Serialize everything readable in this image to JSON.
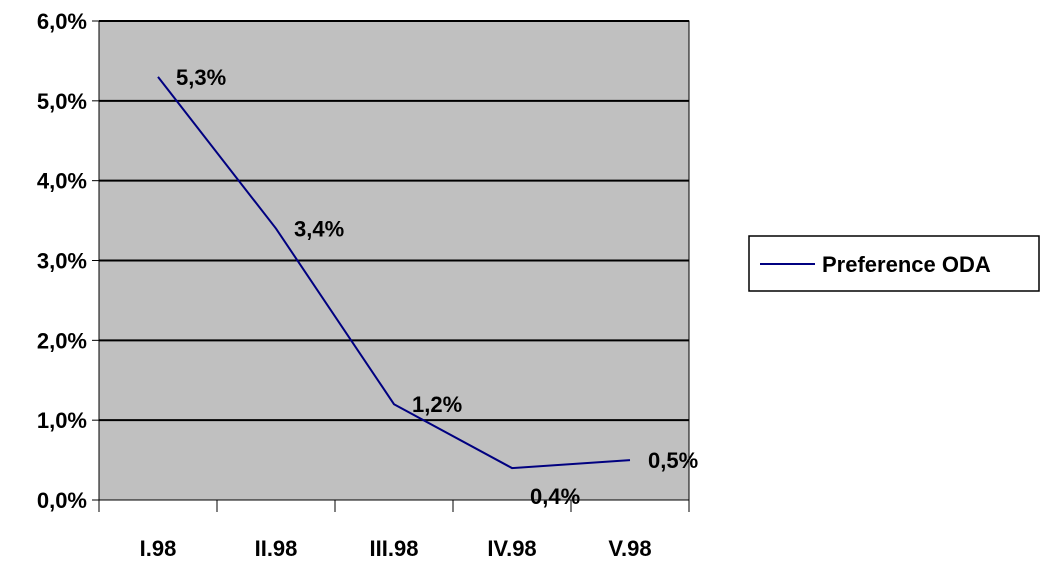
{
  "chart_data": {
    "type": "line",
    "categories": [
      "I.98",
      "II.98",
      "III.98",
      "IV.98",
      "V.98"
    ],
    "series": [
      {
        "name": "Preference ODA",
        "values": [
          5.3,
          3.4,
          1.2,
          0.4,
          0.5
        ],
        "data_labels": [
          "5,3%",
          "3,4%",
          "1,2%",
          "0,4%",
          "0,5%"
        ],
        "color": "#000080"
      }
    ],
    "y_ticks": [
      "0,0%",
      "1,0%",
      "2,0%",
      "3,0%",
      "4,0%",
      "5,0%",
      "6,0%"
    ],
    "ylim": [
      0,
      6
    ],
    "grid": true,
    "legend": "right",
    "plot_background": "#c0c0c0"
  }
}
